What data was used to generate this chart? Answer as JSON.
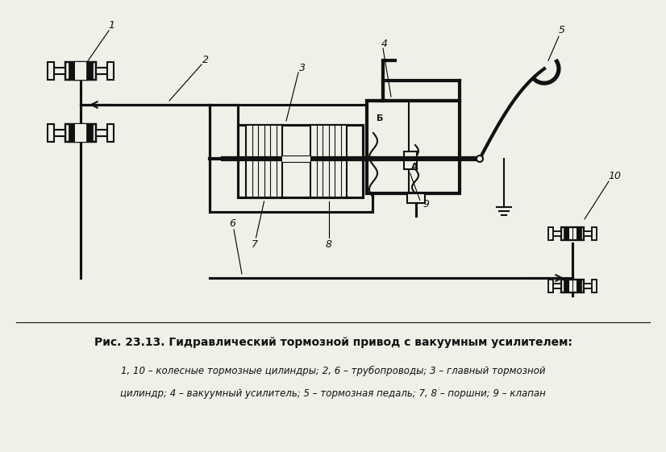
{
  "title": "Рис. 23.13. Гидравлический тормозной привод с вакуумным усилителем:",
  "caption_line1": "1, 10 – колесные тормозные цилиндры; 2, 6 – трубопроводы; 3 – главный тормозной",
  "caption_line2": "цилиндр; 4 – вакуумный усилитель; 5 – тормозная педаль; 7, 8 – поршни; 9 – клапан",
  "bg_color": "#f0efe8",
  "line_color": "#111111",
  "lw": 1.5
}
